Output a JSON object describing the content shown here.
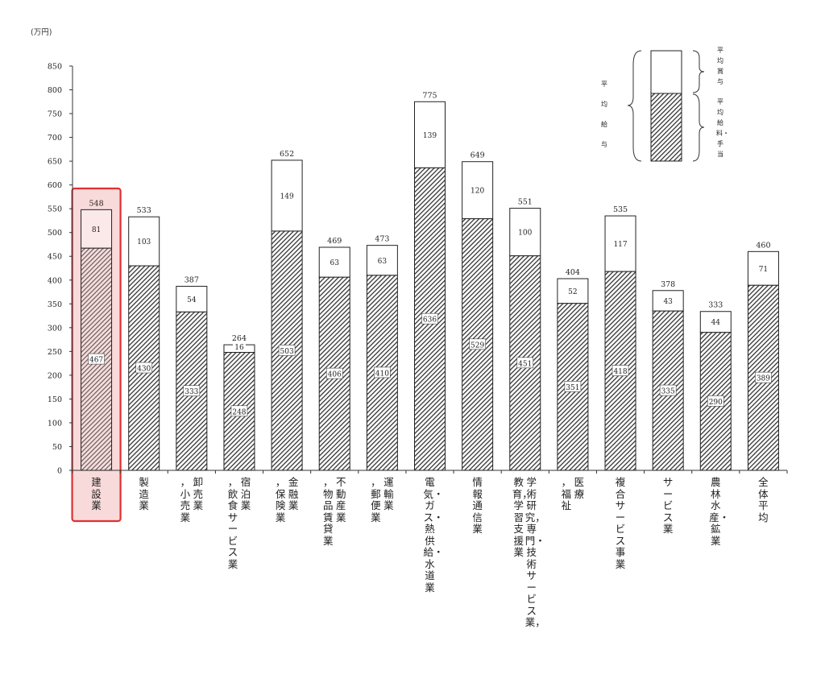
{
  "chart_data": {
    "type": "bar",
    "stacked": true,
    "unit": "(万円)",
    "ylim": [
      0,
      850
    ],
    "yticks": [
      0,
      50,
      100,
      150,
      200,
      250,
      300,
      350,
      400,
      450,
      500,
      550,
      600,
      650,
      700,
      750,
      800,
      850
    ],
    "categories": [
      {
        "lines": [
          "建設業"
        ]
      },
      {
        "lines": [
          "製造業"
        ]
      },
      {
        "lines": [
          "卸売業",
          "，小売業"
        ]
      },
      {
        "lines": [
          "宿泊業",
          "，飲食サービス業"
        ]
      },
      {
        "lines": [
          "金融業",
          "，保険業"
        ]
      },
      {
        "lines": [
          "不動産業",
          "，物品賃貸業"
        ]
      },
      {
        "lines": [
          "運輸業",
          "，郵便業"
        ]
      },
      {
        "lines": [
          "電気・ガス・熱供給・水道業"
        ]
      },
      {
        "lines": [
          "情報通信業"
        ]
      },
      {
        "lines": [
          "学術研究，専門・技術サービス業，",
          "教育，学習支援業"
        ]
      },
      {
        "lines": [
          "医療",
          "，福祉"
        ]
      },
      {
        "lines": [
          "複合サービス事業"
        ]
      },
      {
        "lines": [
          "サービス業"
        ]
      },
      {
        "lines": [
          "農林水産・鉱業"
        ]
      },
      {
        "lines": [
          "全体平均"
        ]
      }
    ],
    "series": [
      {
        "name": "平均給料・手当",
        "values": [
          467,
          430,
          333,
          248,
          503,
          406,
          410,
          636,
          529,
          451,
          351,
          418,
          335,
          290,
          389
        ]
      },
      {
        "name": "平均賞与",
        "values": [
          81,
          103,
          54,
          16,
          149,
          63,
          63,
          139,
          120,
          100,
          52,
          117,
          43,
          44,
          71
        ]
      }
    ],
    "totals": [
      548,
      533,
      387,
      264,
      652,
      469,
      473,
      775,
      649,
      551,
      404,
      535,
      378,
      333,
      460
    ],
    "highlight_index": 0,
    "legend": {
      "left_label": "平均給与",
      "top_label": "平均賞与",
      "bottom_label": "平均給料・手当"
    },
    "colors": {
      "salary_fill": "#555555",
      "bonus_fill": "#ffffff",
      "highlight_border": "#e03030",
      "highlight_fill": "#f9dada"
    }
  }
}
